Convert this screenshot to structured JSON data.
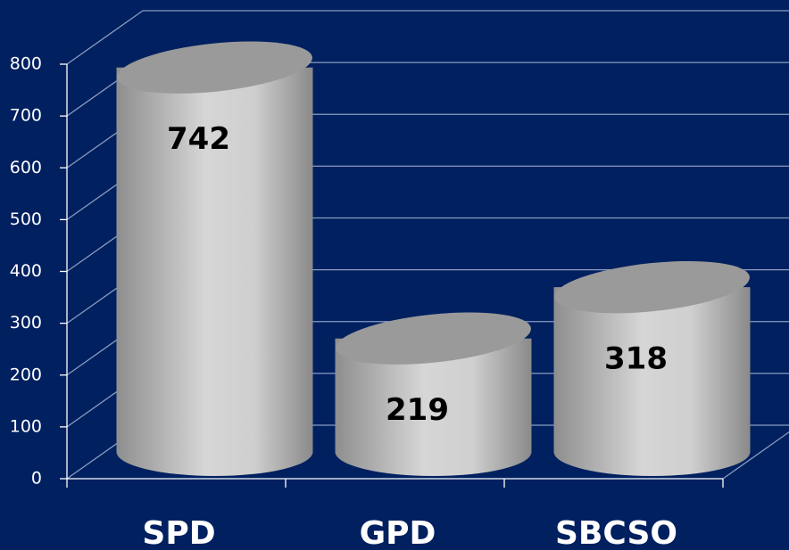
{
  "chart_data": {
    "type": "bar",
    "categories": [
      "SPD",
      "GPD",
      "SBCSO"
    ],
    "values": [
      742,
      219,
      318
    ],
    "color": "#c0c0c0",
    "ylim": [
      0,
      800
    ],
    "yticks": [
      0,
      100,
      200,
      300,
      400,
      500,
      600,
      700,
      800
    ],
    "grid": true
  }
}
